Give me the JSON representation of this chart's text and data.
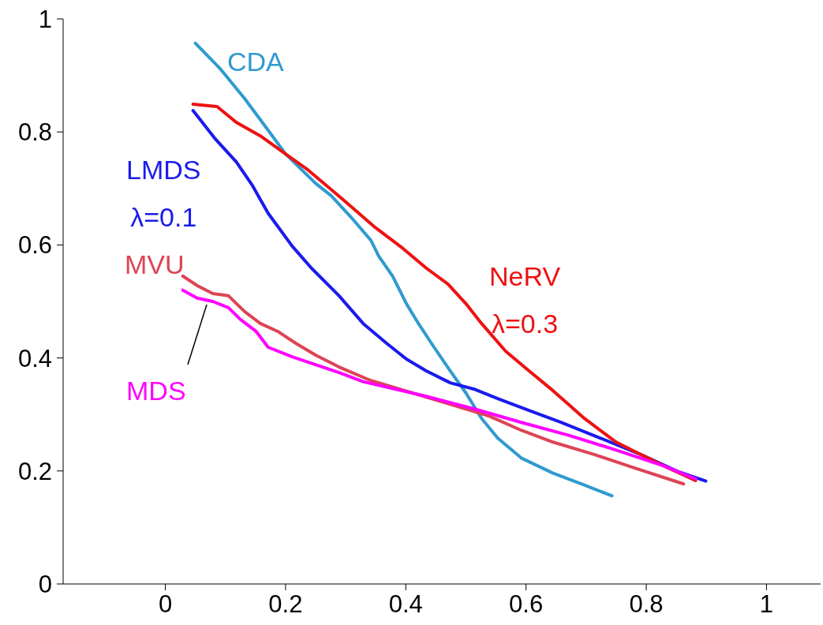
{
  "chart_data": {
    "type": "line",
    "xlim": [
      -0.17,
      1.09
    ],
    "ylim": [
      0,
      1
    ],
    "xticks": [
      0,
      0.2,
      0.4,
      0.6,
      0.8,
      1
    ],
    "yticks": [
      0,
      0.2,
      0.4,
      0.6,
      0.8,
      1
    ],
    "grid": false,
    "marker": "none",
    "line_style": "solid",
    "series": [
      {
        "name": "CDA",
        "color": "#2f9bd0",
        "x": [
          0.05,
          0.092,
          0.132,
          0.171,
          0.2,
          0.25,
          0.276,
          0.309,
          0.342,
          0.355,
          0.378,
          0.401,
          0.421,
          0.447,
          0.474,
          0.5,
          0.526,
          0.553,
          0.592,
          0.645,
          0.697,
          0.743
        ],
        "values": [
          0.957,
          0.911,
          0.859,
          0.803,
          0.761,
          0.709,
          0.687,
          0.649,
          0.608,
          0.58,
          0.545,
          0.496,
          0.461,
          0.419,
          0.377,
          0.338,
          0.293,
          0.258,
          0.223,
          0.196,
          0.175,
          0.156
        ]
      },
      {
        "name": "LMDS λ=0.1",
        "color": "#1a1aee",
        "x": [
          0.046,
          0.082,
          0.118,
          0.145,
          0.171,
          0.211,
          0.243,
          0.289,
          0.329,
          0.368,
          0.401,
          0.434,
          0.474,
          0.513,
          0.553,
          0.605,
          0.658,
          0.724,
          0.789,
          0.855,
          0.899
        ],
        "values": [
          0.838,
          0.789,
          0.747,
          0.705,
          0.656,
          0.598,
          0.559,
          0.51,
          0.461,
          0.426,
          0.398,
          0.377,
          0.356,
          0.345,
          0.328,
          0.307,
          0.286,
          0.258,
          0.23,
          0.198,
          0.182
        ]
      },
      {
        "name": "MVU",
        "color": "#dd4455",
        "x": [
          0.029,
          0.053,
          0.079,
          0.105,
          0.132,
          0.158,
          0.187,
          0.217,
          0.25,
          0.289,
          0.342,
          0.408,
          0.474,
          0.539,
          0.592,
          0.645,
          0.711,
          0.776,
          0.862
        ],
        "values": [
          0.545,
          0.528,
          0.514,
          0.51,
          0.482,
          0.461,
          0.447,
          0.426,
          0.405,
          0.384,
          0.36,
          0.339,
          0.318,
          0.297,
          0.272,
          0.251,
          0.23,
          0.207,
          0.177
        ]
      },
      {
        "name": "NeRV λ=0.3",
        "color": "#ee1111",
        "x": [
          0.046,
          0.086,
          0.118,
          0.158,
          0.2,
          0.237,
          0.276,
          0.309,
          0.349,
          0.395,
          0.434,
          0.47,
          0.5,
          0.526,
          0.566,
          0.605,
          0.645,
          0.697,
          0.75,
          0.789,
          0.829,
          0.882
        ],
        "values": [
          0.849,
          0.845,
          0.817,
          0.793,
          0.761,
          0.733,
          0.698,
          0.668,
          0.631,
          0.594,
          0.559,
          0.531,
          0.496,
          0.461,
          0.412,
          0.377,
          0.342,
          0.293,
          0.251,
          0.23,
          0.209,
          0.183
        ]
      },
      {
        "name": "MDS",
        "color": "#ff00ff",
        "x": [
          0.029,
          0.053,
          0.079,
          0.105,
          0.125,
          0.151,
          0.171,
          0.211,
          0.25,
          0.289,
          0.329,
          0.382,
          0.434,
          0.513,
          0.592,
          0.671,
          0.75,
          0.829,
          0.882
        ],
        "values": [
          0.52,
          0.506,
          0.5,
          0.489,
          0.468,
          0.447,
          0.419,
          0.402,
          0.388,
          0.374,
          0.358,
          0.345,
          0.332,
          0.31,
          0.286,
          0.263,
          0.237,
          0.209,
          0.186
        ]
      }
    ]
  }
}
